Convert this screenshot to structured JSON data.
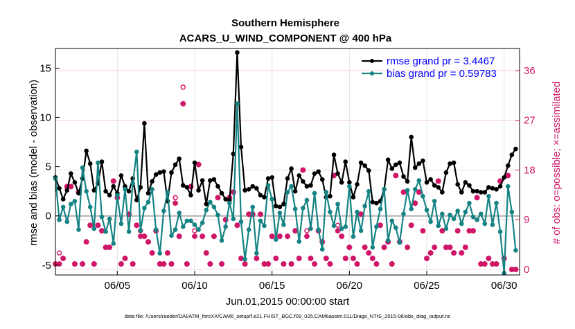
{
  "chart_data": {
    "type": "line",
    "title": "Southern Hemisphere",
    "subtitle": "ACARS_U_WIND_COMPONENT @ 400 hPa",
    "xlabel": "Jun.01,2015 00:00:00 start",
    "ylabel": "rmse and bias (model - observation)",
    "ylabel_right": "# of obs: o=possible; ×=assimilated",
    "footer": "data file: /Users/raeder/DAI/ATM_forcXX/CAM6_setup/f.e21.FHIST_BGC.f09_025.CAM6assim.011/Diags_NTrS_2015-06/obs_diag_output.nc",
    "x_ticks": [
      "06/05",
      "06/10",
      "06/15",
      "06/20",
      "06/25",
      "06/30"
    ],
    "x_tick_values": [
      5,
      10,
      15,
      20,
      25,
      30
    ],
    "xlim": [
      1,
      31
    ],
    "ylim": [
      -6,
      17
    ],
    "y_ticks": [
      -5,
      0,
      5,
      10,
      15
    ],
    "y2lim": [
      -1,
      40
    ],
    "y2_ticks": [
      0,
      9,
      18,
      27,
      36
    ],
    "grid": true,
    "legend_position": "top-right",
    "colors": {
      "rmse": "#000000",
      "bias": "#158383",
      "obs": "#d01668",
      "zero_line": "#b0b0b0",
      "legend_text": "#0000ff"
    },
    "series": [
      {
        "name": "rmse grand pr = 3.4467",
        "key": "rmse",
        "axis": "left",
        "x": [
          1.0,
          1.25,
          1.5,
          1.75,
          2.0,
          2.25,
          2.5,
          2.75,
          3.0,
          3.25,
          3.5,
          3.75,
          4.0,
          4.25,
          4.5,
          4.75,
          5.0,
          5.25,
          5.5,
          5.75,
          6.0,
          6.25,
          6.5,
          6.75,
          7.0,
          7.25,
          7.5,
          7.75,
          8.0,
          8.25,
          8.5,
          8.75,
          9.0,
          9.25,
          9.5,
          9.75,
          10.0,
          10.25,
          10.5,
          10.75,
          11.0,
          11.25,
          11.5,
          11.75,
          12.0,
          12.25,
          12.5,
          12.75,
          13.0,
          13.25,
          13.5,
          13.75,
          14.0,
          14.25,
          14.5,
          14.75,
          15.0,
          15.25,
          15.5,
          15.75,
          16.0,
          16.25,
          16.5,
          16.75,
          17.0,
          17.25,
          17.5,
          17.75,
          18.0,
          18.25,
          18.5,
          18.75,
          19.0,
          19.25,
          19.5,
          19.75,
          20.0,
          20.25,
          20.5,
          20.75,
          21.0,
          21.25,
          21.5,
          21.75,
          22.0,
          22.25,
          22.5,
          22.75,
          23.0,
          23.25,
          23.5,
          23.75,
          24.0,
          24.25,
          24.5,
          24.75,
          25.0,
          25.25,
          25.5,
          25.75,
          26.0,
          26.25,
          26.5,
          26.75,
          27.0,
          27.25,
          27.5,
          27.75,
          28.0,
          28.25,
          28.5,
          28.75,
          29.0,
          29.25,
          29.5,
          29.75,
          30.0,
          30.25,
          30.5,
          30.75
        ],
        "values": [
          3.9,
          2.8,
          1.7,
          2.6,
          4.3,
          3.4,
          2.3,
          3.8,
          6.6,
          5.3,
          2.6,
          3.3,
          5.5,
          2.5,
          2.1,
          3.0,
          2.3,
          4.1,
          3.0,
          2.5,
          3.8,
          1.6,
          2.9,
          9.4,
          2.3,
          3.5,
          4.2,
          4.4,
          4.5,
          1.5,
          4.4,
          5.2,
          5.8,
          3.1,
          2.9,
          2.1,
          5.4,
          2.6,
          3.6,
          1.2,
          3.6,
          3.7,
          3.0,
          2.3,
          1.7,
          1.6,
          6.3,
          16.6,
          7.0,
          2.6,
          2.7,
          3.0,
          2.8,
          2.1,
          1.9,
          3.8,
          3.9,
          1.0,
          0.9,
          1.2,
          3.8,
          4.8,
          2.5,
          4.1,
          3.5,
          3.0,
          3.1,
          4.3,
          4.5,
          3.7,
          1.9,
          2.0,
          6.2,
          4.3,
          3.4,
          5.5,
          3.4,
          1.9,
          3.2,
          5.4,
          5.1,
          4.6,
          1.4,
          1.3,
          1.5,
          2.7,
          5.7,
          4.8,
          5.2,
          5.4,
          4.0,
          3.5,
          8.0,
          4.9,
          5.3,
          5.6,
          3.4,
          3.7,
          3.1,
          2.9,
          2.4,
          4.4,
          5.3,
          5.4,
          3.2,
          2.4,
          3.4,
          3.1,
          2.5,
          2.5,
          2.4,
          2.4,
          2.9,
          2.8,
          2.7,
          3.0,
          3.9,
          5.1,
          6.2,
          6.8
        ]
      },
      {
        "name": "bias grand pr = 0.59783",
        "key": "bias",
        "axis": "left",
        "x": [
          1.0,
          1.25,
          1.5,
          1.75,
          2.0,
          2.25,
          2.5,
          2.75,
          3.0,
          3.25,
          3.5,
          3.75,
          4.0,
          4.25,
          4.5,
          4.75,
          5.0,
          5.25,
          5.5,
          5.75,
          6.0,
          6.25,
          6.5,
          6.75,
          7.0,
          7.25,
          7.5,
          7.75,
          8.0,
          8.25,
          8.5,
          8.75,
          9.0,
          9.25,
          9.5,
          9.75,
          10.0,
          10.25,
          10.5,
          10.75,
          11.0,
          11.25,
          11.5,
          11.75,
          12.0,
          12.25,
          12.5,
          12.75,
          13.0,
          13.25,
          13.5,
          13.75,
          14.0,
          14.25,
          14.5,
          14.75,
          15.0,
          15.25,
          15.5,
          15.75,
          16.0,
          16.25,
          16.5,
          16.75,
          17.0,
          17.25,
          17.5,
          17.75,
          18.0,
          18.25,
          18.5,
          18.75,
          19.0,
          19.25,
          19.5,
          19.75,
          20.0,
          20.25,
          20.5,
          20.75,
          21.0,
          21.25,
          21.5,
          21.75,
          22.0,
          22.25,
          22.5,
          22.75,
          23.0,
          23.25,
          23.5,
          23.75,
          24.0,
          24.25,
          24.5,
          24.75,
          25.0,
          25.25,
          25.5,
          25.75,
          26.0,
          26.25,
          26.5,
          26.75,
          27.0,
          27.25,
          27.5,
          27.75,
          28.0,
          28.25,
          28.5,
          28.75,
          29.0,
          29.25,
          29.5,
          29.75,
          30.0,
          30.25,
          30.5,
          30.75
        ],
        "values": [
          3.8,
          -0.4,
          0.9,
          -0.6,
          1.2,
          1.5,
          -1.4,
          4.9,
          2.5,
          0.9,
          -1.3,
          5.4,
          -0.1,
          -1.6,
          -0.3,
          -2.8,
          2.1,
          -0.8,
          2.7,
          -1.6,
          3.3,
          6.5,
          -1.5,
          0.8,
          1.4,
          2.7,
          -1.4,
          -3.8,
          0.5,
          2.4,
          -2.0,
          -1.4,
          0.3,
          -1.1,
          -0.5,
          -0.5,
          -0.9,
          -1.4,
          -0.7,
          0.6,
          1.4,
          0.9,
          0.1,
          -2.5,
          -1.1,
          1.3,
          -0.3,
          11.4,
          -0.6,
          -4.4,
          -1.4,
          0.9,
          -3.8,
          -0.5,
          -1.0,
          3.1,
          1.7,
          -2.4,
          0.3,
          -0.9,
          2.4,
          3.0,
          0.7,
          -2.6,
          0.8,
          1.6,
          -1.3,
          2.3,
          -1.4,
          -3.4,
          2.4,
          0.4,
          -1.0,
          1.2,
          -1.3,
          -1.1,
          3.0,
          -2.1,
          0.4,
          -1.5,
          1.0,
          2.5,
          -3.2,
          -1.1,
          0.7,
          2.7,
          -2.5,
          -0.5,
          -1.2,
          -2.7,
          0.2,
          2.6,
          0.7,
          2.7,
          3.6,
          2.0,
          0.6,
          -0.6,
          1.5,
          -1.0,
          0.2,
          -1.3,
          0.1,
          -0.3,
          0.5,
          -0.8,
          0.4,
          1.3,
          -0.1,
          -0.4,
          0.2,
          -0.8,
          2.0,
          -0.9,
          1.3,
          -1.6,
          -5.8,
          3.0,
          0.4,
          -3.5
        ]
      },
      {
        "name": "obs possible",
        "key": "possible",
        "axis": "right",
        "marker": "circle",
        "x": [
          1.0,
          1.25,
          1.5,
          1.75,
          2.0,
          2.25,
          2.5,
          2.75,
          3.0,
          3.25,
          3.5,
          3.75,
          4.0,
          4.25,
          4.5,
          4.75,
          5.0,
          5.25,
          5.5,
          5.75,
          6.0,
          6.25,
          6.5,
          6.75,
          7.0,
          7.25,
          7.5,
          7.75,
          8.0,
          8.25,
          8.5,
          8.75,
          9.0,
          9.25,
          9.5,
          9.75,
          10.0,
          10.25,
          10.5,
          10.75,
          11.0,
          11.25,
          11.5,
          11.75,
          12.0,
          12.25,
          12.5,
          12.75,
          13.0,
          13.25,
          13.5,
          13.75,
          14.0,
          14.25,
          14.5,
          14.75,
          15.0,
          15.25,
          15.5,
          15.75,
          16.0,
          16.25,
          16.5,
          16.75,
          17.0,
          17.25,
          17.5,
          17.75,
          18.0,
          18.25,
          18.5,
          18.75,
          19.0,
          19.25,
          19.5,
          19.75,
          20.0,
          20.25,
          20.5,
          20.75,
          21.0,
          21.25,
          21.5,
          21.75,
          22.0,
          22.25,
          22.5,
          22.75,
          23.0,
          23.25,
          23.5,
          23.75,
          24.0,
          24.25,
          24.5,
          24.75,
          25.0,
          25.25,
          25.5,
          25.75,
          26.0,
          26.25,
          26.5,
          26.75,
          27.0,
          27.25,
          27.5,
          27.75,
          28.0,
          28.25,
          28.5,
          28.75,
          29.0,
          29.25,
          29.5,
          29.75,
          30.0,
          30.25,
          30.5,
          30.75
        ],
        "values": [
          1,
          3,
          2,
          15,
          15,
          1,
          14,
          1,
          5,
          8,
          1,
          8,
          7,
          4,
          4,
          16,
          13,
          1,
          2,
          10,
          1,
          8,
          7,
          6,
          5,
          3,
          7,
          1,
          1,
          3,
          1,
          13,
          6,
          33,
          1,
          15,
          7,
          19,
          6,
          3,
          1,
          6,
          13,
          1,
          9,
          13,
          14,
          8,
          2,
          1,
          10,
          10,
          2,
          10,
          1,
          1,
          6,
          2,
          6,
          1,
          6,
          1,
          7,
          2,
          18,
          7,
          2,
          1,
          7,
          5,
          2,
          1,
          17,
          8,
          6,
          2,
          4,
          2,
          1,
          10,
          4,
          3,
          2,
          1,
          8,
          4,
          5,
          1,
          17,
          5,
          14,
          4,
          8,
          12,
          14,
          7,
          2,
          3,
          4,
          16,
          7,
          4,
          4,
          3,
          7,
          3,
          4,
          7,
          7,
          13,
          1,
          1,
          2,
          1,
          1,
          16,
          2,
          17,
          0,
          0
        ]
      },
      {
        "name": "obs assimilated",
        "key": "assimilated",
        "axis": "right",
        "marker": "asterisk",
        "x": [
          1.0,
          1.25,
          1.5,
          1.75,
          2.0,
          2.25,
          2.5,
          2.75,
          3.0,
          3.25,
          3.5,
          3.75,
          4.0,
          4.25,
          4.5,
          4.75,
          5.0,
          5.25,
          5.5,
          5.75,
          6.0,
          6.25,
          6.5,
          6.75,
          7.0,
          7.25,
          7.5,
          7.75,
          8.0,
          8.25,
          8.5,
          8.75,
          9.0,
          9.25,
          9.5,
          9.75,
          10.0,
          10.25,
          10.5,
          10.75,
          11.0,
          11.25,
          11.5,
          11.75,
          12.0,
          12.25,
          12.5,
          12.75,
          13.0,
          13.25,
          13.5,
          13.75,
          14.0,
          14.25,
          14.5,
          14.75,
          15.0,
          15.25,
          15.5,
          15.75,
          16.0,
          16.25,
          16.5,
          16.75,
          17.0,
          17.25,
          17.5,
          17.75,
          18.0,
          18.25,
          18.5,
          18.75,
          19.0,
          19.25,
          19.5,
          19.75,
          20.0,
          20.25,
          20.5,
          20.75,
          21.0,
          21.25,
          21.5,
          21.75,
          22.0,
          22.25,
          22.5,
          22.75,
          23.0,
          23.25,
          23.5,
          23.75,
          24.0,
          24.25,
          24.5,
          24.75,
          25.0,
          25.25,
          25.5,
          25.75,
          26.0,
          26.25,
          26.5,
          26.75,
          27.0,
          27.25,
          27.5,
          27.75,
          28.0,
          28.25,
          28.5,
          28.75,
          29.0,
          29.25,
          29.5,
          29.75,
          30.0,
          30.25,
          30.5,
          30.75
        ],
        "values": [
          1,
          1,
          2,
          15,
          15,
          1,
          14,
          1,
          5,
          8,
          1,
          8,
          7,
          4,
          4,
          16,
          13,
          1,
          2,
          10,
          1,
          8,
          6,
          6,
          5,
          3,
          7,
          1,
          1,
          3,
          1,
          12,
          6,
          30,
          1,
          15,
          6,
          19,
          6,
          3,
          1,
          6,
          13,
          1,
          9,
          13,
          14,
          8,
          2,
          1,
          10,
          10,
          2,
          10,
          1,
          1,
          6,
          2,
          6,
          1,
          6,
          1,
          7,
          2,
          18,
          6,
          2,
          1,
          7,
          5,
          2,
          1,
          17,
          7,
          6,
          2,
          4,
          2,
          1,
          10,
          4,
          3,
          2,
          1,
          8,
          4,
          5,
          1,
          17,
          5,
          14,
          4,
          8,
          12,
          14,
          7,
          2,
          3,
          4,
          16,
          7,
          4,
          4,
          3,
          7,
          3,
          4,
          7,
          7,
          13,
          1,
          1,
          2,
          1,
          1,
          16,
          2,
          17,
          0,
          0
        ]
      }
    ]
  }
}
